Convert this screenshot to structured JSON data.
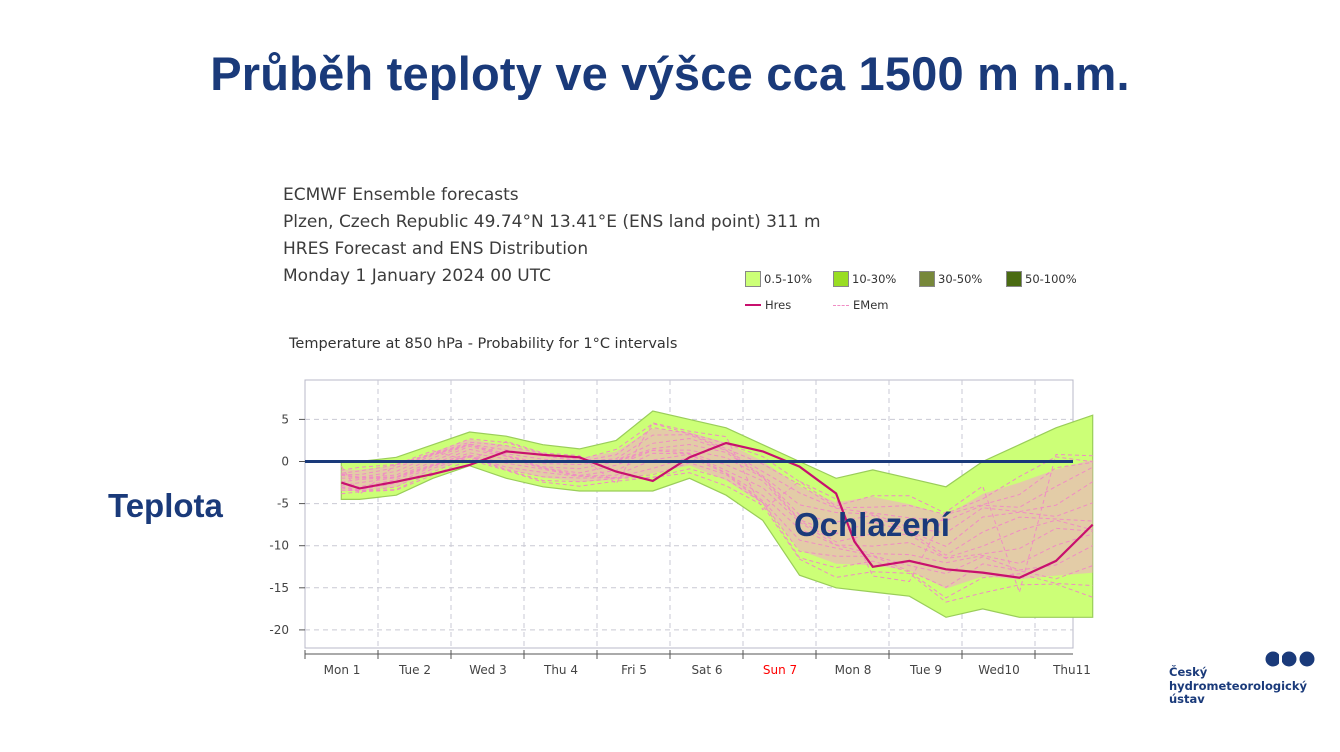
{
  "slide": {
    "title": "Průběh teploty ve výšce cca 1500 m n.m.",
    "side_label": "Teplota",
    "callout": "Ochlazení"
  },
  "chart_header": {
    "line1": "ECMWF Ensemble forecasts",
    "line2": "Plzen, Czech Republic 49.74°N 13.41°E (ENS land point) 311 m",
    "line3": "HRES Forecast and ENS Distribution",
    "line4": "Monday  1 January 2024 00 UTC"
  },
  "legend": {
    "items": [
      {
        "label": "0.5-10%",
        "color": "#ccff77"
      },
      {
        "label": "10-30%",
        "color": "#99dd22"
      },
      {
        "label": "30-50%",
        "color": "#77883a"
      },
      {
        "label": "50-100%",
        "color": "#4a6b12"
      }
    ],
    "hres_label": "Hres",
    "emem_label": "EMem",
    "hres_color": "#c8106e",
    "emem_color": "#f08cc4"
  },
  "logo": {
    "line1": "Český",
    "line2": "hydrometeorologický",
    "line3": "ústav"
  },
  "chart_data": {
    "type": "line",
    "title": "Temperature at 850 hPa - Probability for 1°C intervals",
    "xlabel": "",
    "ylabel": "",
    "x_tick_labels": [
      "Mon 1",
      "Tue 2",
      "Wed 3",
      "Thu 4",
      "Fri 5",
      "Sat 6",
      "Sun 7",
      "Mon 8",
      "Tue 9",
      "Wed10",
      "Thu11"
    ],
    "x_tick_days": [
      0.5,
      1.5,
      2.5,
      3.5,
      4.5,
      5.5,
      6.5,
      7.5,
      8.5,
      9.5,
      10.5
    ],
    "highlight_tick": "Sun 7",
    "highlight_color": "#ff0000",
    "y_ticks": [
      5,
      0,
      -5,
      -10,
      -15,
      -20
    ],
    "ylim": [
      -22.5,
      9.5
    ],
    "xlim": [
      0,
      10.5
    ],
    "reference_line": 0,
    "reference_color": "#1a3a7a",
    "grid": true,
    "series": [
      {
        "name": "Hres",
        "x": [
          0.25,
          0.5,
          1,
          1.5,
          2,
          2.5,
          3,
          3.5,
          4,
          4.5,
          5,
          5.5,
          6,
          6.5,
          7,
          7.25,
          7.5,
          8,
          8.5,
          9,
          9.5,
          10,
          10.5
        ],
        "values": [
          -2.5,
          -3.2,
          -2.4,
          -1.5,
          -0.4,
          1.2,
          0.8,
          0.5,
          -1.2,
          -2.3,
          0.5,
          2.2,
          1.2,
          -0.6,
          -3.8,
          -9.5,
          -12.5,
          -11.8,
          -12.8,
          -13.2,
          -13.8,
          -11.8,
          -7.5
        ]
      }
    ],
    "envelope": {
      "name": "0.5-10%",
      "x": [
        0.25,
        0.5,
        1,
        1.5,
        2,
        2.5,
        3,
        3.5,
        4,
        4.5,
        5,
        5.5,
        6,
        6.5,
        7,
        7.5,
        8,
        8.5,
        9,
        9.5,
        10,
        10.5
      ],
      "upper": [
        0.0,
        0.0,
        0.5,
        2.0,
        3.5,
        3.0,
        2.0,
        1.5,
        2.5,
        6.0,
        5.0,
        4.0,
        2.0,
        0.0,
        -2.0,
        -1.0,
        -2.0,
        -3.0,
        0.0,
        2.0,
        4.0,
        5.5
      ],
      "lower": [
        -4.5,
        -4.5,
        -4.0,
        -2.0,
        -0.5,
        -2.0,
        -3.0,
        -3.5,
        -3.5,
        -3.5,
        -2.0,
        -4.0,
        -7.0,
        -13.5,
        -15.0,
        -15.5,
        -16.0,
        -18.5,
        -17.5,
        -18.5,
        -18.5,
        -18.5
      ]
    }
  }
}
